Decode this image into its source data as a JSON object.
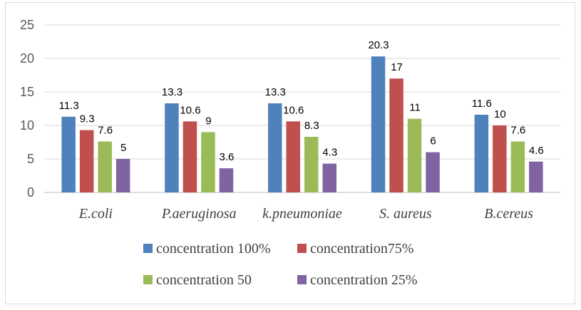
{
  "chart_data": {
    "type": "bar",
    "title": "",
    "xlabel": "",
    "ylabel": "",
    "ylim": [
      0,
      25
    ],
    "yticks": [
      0,
      5,
      10,
      15,
      20,
      25
    ],
    "grid": true,
    "legend_position": "bottom",
    "categories": [
      "E.coli",
      "P.aeruginosa",
      "k.pneumoniae",
      "S. aureus",
      "B.cereus"
    ],
    "series": [
      {
        "name": "concentration 100%",
        "color": "#4f81bd",
        "values": [
          11.3,
          13.3,
          13.3,
          20.3,
          11.6
        ]
      },
      {
        "name": "concentration75%",
        "color": "#c0504d",
        "values": [
          9.3,
          10.6,
          10.6,
          17,
          10
        ]
      },
      {
        "name": "concentration 50",
        "color": "#9bbb59",
        "values": [
          7.6,
          9,
          8.3,
          11,
          7.6
        ]
      },
      {
        "name": "concentration 25%",
        "color": "#8064a2",
        "values": [
          5,
          3.6,
          4.3,
          6,
          4.6
        ]
      }
    ]
  }
}
